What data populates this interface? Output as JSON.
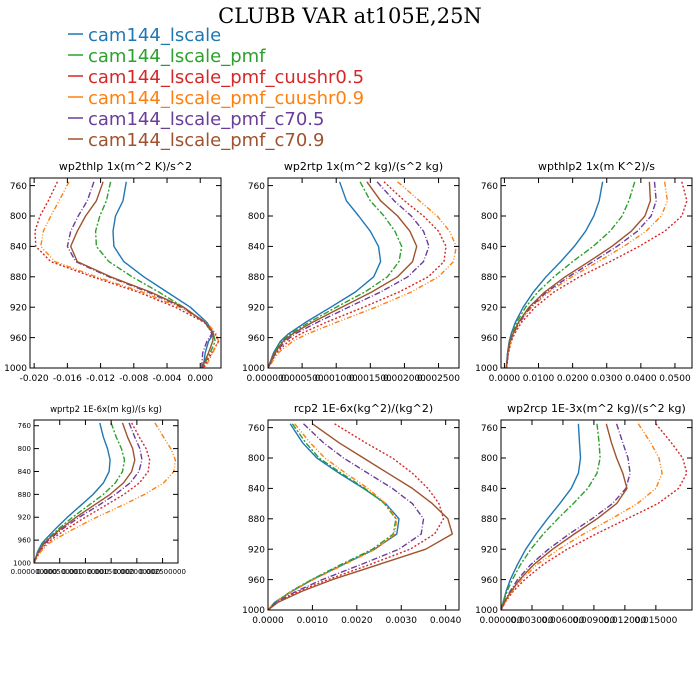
{
  "figure": {
    "title": "CLUBB VAR at105E,25N"
  },
  "legend": [
    {
      "label": "cam144_lscale",
      "color": "#1f77b4"
    },
    {
      "label": "cam144_lscale_pmf",
      "color": "#2ca02c"
    },
    {
      "label": "cam144_lscale_pmf_cuushr0.5",
      "color": "#d62728"
    },
    {
      "label": "cam144_lscale_pmf_cuushr0.9",
      "color": "#ff7f0e"
    },
    {
      "label": "cam144_lscale_pmf_c70.5",
      "color": "#6a3d9a"
    },
    {
      "label": "cam144_lscale_pmf_c70.9",
      "color": "#a0522d"
    }
  ],
  "series_styles": [
    {
      "color": "#1f77b4",
      "dash": ""
    },
    {
      "color": "#2ca02c",
      "dash": "6,2,2,2"
    },
    {
      "color": "#d62728",
      "dash": "2,2"
    },
    {
      "color": "#ff7f0e",
      "dash": "5,2,1,2,1,2"
    },
    {
      "color": "#6a3d9a",
      "dash": "6,2,1,2"
    },
    {
      "color": "#a0522d",
      "dash": ""
    }
  ],
  "chart_data": [
    {
      "type": "line",
      "title": "wp2thlp   1x(m^2 K)/s^2",
      "ylim": [
        1000,
        750
      ],
      "yticks": [
        760,
        800,
        840,
        880,
        920,
        960,
        1000
      ],
      "xlim": [
        -0.0205,
        0.0025
      ],
      "xticks": [
        -0.02,
        -0.016,
        -0.012,
        -0.008,
        -0.004,
        0.0
      ],
      "xtick_labels": [
        "-0.020",
        "-0.016",
        "-0.012",
        "-0.008",
        "-0.004",
        "0.000"
      ],
      "levels": [
        755,
        780,
        800,
        820,
        840,
        860,
        880,
        900,
        920,
        940,
        955,
        965,
        980,
        995,
        1000
      ],
      "series": [
        {
          "name": "cam144_lscale",
          "values": [
            -0.0089,
            -0.0093,
            -0.0102,
            -0.0105,
            -0.0104,
            -0.0092,
            -0.0068,
            -0.004,
            -0.0012,
            0.0008,
            0.0016,
            0.001,
            0.0006,
            0.0004,
            0.0003
          ]
        },
        {
          "name": "cam144_lscale_pmf",
          "values": [
            -0.0108,
            -0.0113,
            -0.0121,
            -0.0126,
            -0.0125,
            -0.011,
            -0.0082,
            -0.005,
            -0.002,
            0.0005,
            0.0016,
            0.0018,
            0.0012,
            0.0005,
            0.0003
          ]
        },
        {
          "name": "cam144_lscale_pmf_cuushr0.5",
          "values": [
            -0.0172,
            -0.0183,
            -0.0193,
            -0.0199,
            -0.0198,
            -0.018,
            -0.013,
            -0.0075,
            -0.003,
            0.0005,
            0.0018,
            0.0022,
            0.0014,
            0.0006,
            0.0004
          ]
        },
        {
          "name": "cam144_lscale_pmf_cuushr0.9",
          "values": [
            -0.0158,
            -0.017,
            -0.018,
            -0.0189,
            -0.0192,
            -0.0175,
            -0.0125,
            -0.007,
            -0.0025,
            0.0008,
            0.0019,
            0.0022,
            0.0015,
            0.0008,
            0.0005
          ]
        },
        {
          "name": "cam144_lscale_pmf_c70.5",
          "values": [
            -0.0128,
            -0.0136,
            -0.0147,
            -0.0156,
            -0.016,
            -0.015,
            -0.011,
            -0.0063,
            -0.0022,
            0.0006,
            0.0014,
            0.0008,
            0.0003,
            0.0002,
            0.0002
          ]
        },
        {
          "name": "cam144_lscale_pmf_c70.9",
          "values": [
            -0.0117,
            -0.0125,
            -0.0138,
            -0.0148,
            -0.0156,
            -0.0148,
            -0.0108,
            -0.006,
            -0.002,
            0.0006,
            0.0016,
            0.0015,
            0.001,
            0.0004,
            0.0003
          ]
        }
      ]
    },
    {
      "type": "line",
      "title": "wp2rtp   1x(m^2 kg)/(s^2 kg)",
      "ylim": [
        1000,
        750
      ],
      "yticks": [
        760,
        800,
        840,
        880,
        920,
        960,
        1000
      ],
      "xlim": [
        0,
        0.0028
      ],
      "xticks": [
        0,
        0.0005,
        0.001,
        0.0015,
        0.002,
        0.0025
      ],
      "xtick_labels": [
        "0.000000",
        "0.000500",
        "0.001000",
        "0.001500",
        "0.002000",
        "0.002500"
      ],
      "levels": [
        755,
        780,
        800,
        820,
        840,
        860,
        880,
        900,
        920,
        940,
        955,
        965,
        980,
        995,
        1000
      ],
      "series": [
        {
          "name": "cam144_lscale",
          "values": [
            0.00105,
            0.00115,
            0.00133,
            0.0015,
            0.00162,
            0.00165,
            0.00155,
            0.00128,
            0.00092,
            0.00055,
            0.0003,
            0.00018,
            8e-05,
            2e-05,
            0.0
          ]
        },
        {
          "name": "cam144_lscale_pmf",
          "values": [
            0.00135,
            0.0015,
            0.0017,
            0.00186,
            0.00196,
            0.00192,
            0.00175,
            0.00142,
            0.001,
            0.0006,
            0.00033,
            0.0002,
            9e-05,
            2e-05,
            0.0
          ]
        },
        {
          "name": "cam144_lscale_pmf_cuushr0.5",
          "values": [
            0.0017,
            0.002,
            0.00228,
            0.0025,
            0.00261,
            0.00258,
            0.00235,
            0.00192,
            0.0014,
            0.00085,
            0.00048,
            0.0003,
            0.00012,
            3e-05,
            0.0
          ]
        },
        {
          "name": "cam144_lscale_pmf_cuushr0.9",
          "values": [
            0.0019,
            0.00222,
            0.00248,
            0.00266,
            0.00276,
            0.00272,
            0.0025,
            0.0021,
            0.00158,
            0.001,
            0.00058,
            0.00036,
            0.00015,
            4e-05,
            0.0
          ]
        },
        {
          "name": "cam144_lscale_pmf_c70.5",
          "values": [
            0.0016,
            0.00185,
            0.0021,
            0.00228,
            0.00236,
            0.00228,
            0.00205,
            0.00165,
            0.00118,
            0.00072,
            0.0004,
            0.00025,
            0.00011,
            3e-05,
            0.0
          ]
        },
        {
          "name": "cam144_lscale_pmf_c70.9",
          "values": [
            0.00145,
            0.00165,
            0.0019,
            0.00208,
            0.00218,
            0.00212,
            0.0019,
            0.00152,
            0.00108,
            0.00065,
            0.00036,
            0.00022,
            0.0001,
            2e-05,
            0.0
          ]
        }
      ]
    },
    {
      "type": "line",
      "title": "wpthlp2   1x(m K^2)/s",
      "ylim": [
        1000,
        750
      ],
      "yticks": [
        760,
        800,
        840,
        880,
        920,
        960,
        1000
      ],
      "xlim": [
        -0.001,
        0.055
      ],
      "xticks": [
        0,
        0.01,
        0.02,
        0.03,
        0.04,
        0.05
      ],
      "xtick_labels": [
        "0.0000",
        "0.0100",
        "0.0200",
        "0.0300",
        "0.0400",
        "0.0500"
      ],
      "levels": [
        755,
        780,
        800,
        820,
        840,
        860,
        880,
        900,
        920,
        940,
        955,
        965,
        980,
        995,
        1000
      ],
      "series": [
        {
          "name": "cam144_lscale",
          "values": [
            0.0288,
            0.0278,
            0.0262,
            0.0238,
            0.0205,
            0.0165,
            0.0122,
            0.0085,
            0.0055,
            0.0032,
            0.002,
            0.0014,
            0.0009,
            0.0006,
            0.0005
          ]
        },
        {
          "name": "cam144_lscale_pmf",
          "values": [
            0.0382,
            0.0365,
            0.0345,
            0.031,
            0.026,
            0.02,
            0.0145,
            0.0098,
            0.0062,
            0.0036,
            0.0022,
            0.0015,
            0.001,
            0.0007,
            0.0005
          ]
        },
        {
          "name": "cam144_lscale_pmf_cuushr0.5",
          "values": [
            0.052,
            0.0535,
            0.052,
            0.047,
            0.0395,
            0.031,
            0.022,
            0.0145,
            0.009,
            0.005,
            0.003,
            0.002,
            0.0012,
            0.0008,
            0.0006
          ]
        },
        {
          "name": "cam144_lscale_pmf_cuushr0.9",
          "values": [
            0.047,
            0.0478,
            0.046,
            0.0415,
            0.035,
            0.0275,
            0.0198,
            0.013,
            0.008,
            0.0045,
            0.0027,
            0.0018,
            0.0011,
            0.0007,
            0.0006
          ]
        },
        {
          "name": "cam144_lscale_pmf_c70.5",
          "values": [
            0.044,
            0.0445,
            0.043,
            0.039,
            0.033,
            0.026,
            0.0188,
            0.0124,
            0.0076,
            0.0043,
            0.0026,
            0.0017,
            0.0011,
            0.0007,
            0.0005
          ]
        },
        {
          "name": "cam144_lscale_pmf_c70.9",
          "values": [
            0.0425,
            0.0428,
            0.0412,
            0.0372,
            0.0315,
            0.0248,
            0.0178,
            0.0118,
            0.0072,
            0.0041,
            0.0025,
            0.0016,
            0.001,
            0.0007,
            0.0005
          ]
        }
      ]
    },
    {
      "type": "line",
      "title": "wprtp2   1E-6x(m kg)/(s kg)",
      "ylim": [
        1000,
        750
      ],
      "yticks": [
        760,
        800,
        840,
        880,
        920,
        960,
        1000
      ],
      "xlim": [
        0,
        0.0028
      ],
      "xticks": [
        0,
        0.0005,
        0.001,
        0.0015,
        0.002,
        0.0025
      ],
      "xtick_labels": [
        "0.000000000",
        "0.000500000",
        "0.001000000",
        "0.001500000",
        "0.002000000",
        "0.002500000"
      ],
      "levels": [
        755,
        780,
        800,
        820,
        840,
        860,
        880,
        900,
        920,
        940,
        955,
        965,
        980,
        995,
        1000
      ],
      "series": [
        {
          "name": "cam144_lscale",
          "values": [
            0.00128,
            0.00135,
            0.00143,
            0.00148,
            0.00146,
            0.00135,
            0.00115,
            0.0009,
            0.00065,
            0.00042,
            0.00026,
            0.00016,
            7e-05,
            2e-05,
            0.0
          ]
        },
        {
          "name": "cam144_lscale_pmf",
          "values": [
            0.0015,
            0.0016,
            0.0017,
            0.00176,
            0.00172,
            0.00158,
            0.00135,
            0.00105,
            0.00075,
            0.00048,
            0.0003,
            0.00018,
            8e-05,
            2e-05,
            0.0
          ]
        },
        {
          "name": "cam144_lscale_pmf_cuushr0.5",
          "values": [
            0.0019,
            0.00205,
            0.00218,
            0.00225,
            0.00222,
            0.00205,
            0.00175,
            0.00138,
            0.001,
            0.00064,
            0.0004,
            0.00025,
            0.00011,
            3e-05,
            0.0
          ]
        },
        {
          "name": "cam144_lscale_pmf_cuushr0.9",
          "values": [
            0.00235,
            0.00252,
            0.00266,
            0.00275,
            0.00272,
            0.00252,
            0.00215,
            0.0017,
            0.00122,
            0.00078,
            0.00048,
            0.0003,
            0.00013,
            3e-05,
            0.0
          ]
        },
        {
          "name": "cam144_lscale_pmf_c70.5",
          "values": [
            0.00185,
            0.00196,
            0.00206,
            0.0021,
            0.00204,
            0.00187,
            0.00158,
            0.00124,
            0.00088,
            0.00056,
            0.00035,
            0.00022,
            0.0001,
            2e-05,
            0.0
          ]
        },
        {
          "name": "cam144_lscale_pmf_c70.9",
          "values": [
            0.00172,
            0.00182,
            0.00192,
            0.00196,
            0.0019,
            0.00174,
            0.00148,
            0.00115,
            0.00082,
            0.00052,
            0.00032,
            0.0002,
            9e-05,
            2e-05,
            0.0
          ]
        }
      ]
    },
    {
      "type": "line",
      "title": "rcp2   1E-6x(kg^2)/(kg^2)",
      "ylim": [
        1000,
        750
      ],
      "yticks": [
        760,
        800,
        840,
        880,
        920,
        960,
        1000
      ],
      "xlim": [
        0,
        0.0043
      ],
      "xticks": [
        0,
        0.001,
        0.002,
        0.003,
        0.004
      ],
      "xtick_labels": [
        "0.0000",
        "0.0010",
        "0.0020",
        "0.0030",
        "0.0040"
      ],
      "levels": [
        755,
        780,
        800,
        820,
        840,
        860,
        880,
        900,
        920,
        940,
        960,
        975,
        990,
        1000
      ],
      "series": [
        {
          "name": "cam144_lscale",
          "values": [
            0.0005,
            0.00078,
            0.0011,
            0.0016,
            0.00215,
            0.00265,
            0.00295,
            0.0029,
            0.0024,
            0.0017,
            0.001,
            0.00055,
            0.00015,
            0.0
          ]
        },
        {
          "name": "cam144_lscale_pmf",
          "values": [
            0.00055,
            0.00085,
            0.00115,
            0.00165,
            0.00218,
            0.00262,
            0.00288,
            0.00282,
            0.00235,
            0.00165,
            0.00098,
            0.00053,
            0.00015,
            0.0
          ]
        },
        {
          "name": "cam144_lscale_pmf_cuushr0.5",
          "values": [
            0.0015,
            0.0022,
            0.0028,
            0.00325,
            0.0036,
            0.00385,
            0.00395,
            0.00375,
            0.0032,
            0.0023,
            0.00135,
            0.0007,
            0.0002,
            0.0
          ]
        },
        {
          "name": "cam144_lscale_pmf_cuushr0.9",
          "values": [
            0.0006,
            0.00095,
            0.00128,
            0.00175,
            0.00225,
            0.00265,
            0.0029,
            0.00285,
            0.00242,
            0.00172,
            0.00102,
            0.00055,
            0.00016,
            0.0
          ]
        },
        {
          "name": "cam144_lscale_pmf_c70.5",
          "values": [
            0.0008,
            0.00125,
            0.0017,
            0.00225,
            0.0028,
            0.00325,
            0.0035,
            0.00345,
            0.00295,
            0.0021,
            0.00122,
            0.00065,
            0.00018,
            0.0
          ]
        },
        {
          "name": "cam144_lscale_pmf_c70.9",
          "values": [
            0.001,
            0.0016,
            0.00215,
            0.0027,
            0.00325,
            0.0037,
            0.00405,
            0.00415,
            0.00355,
            0.0025,
            0.00145,
            0.00078,
            0.00022,
            0.0
          ]
        }
      ]
    },
    {
      "type": "line",
      "title": "wp2rcp   1E-3x(m^2 kg)/(s^2 kg)",
      "ylim": [
        1000,
        750
      ],
      "yticks": [
        760,
        800,
        840,
        880,
        920,
        960,
        1000
      ],
      "xlim": [
        0,
        0.0185
      ],
      "xticks": [
        0,
        0.003,
        0.006,
        0.009,
        0.012,
        0.015
      ],
      "xtick_labels": [
        "0.000000",
        "0.003000",
        "0.006000",
        "0.009000",
        "0.012000",
        "0.015000"
      ],
      "levels": [
        755,
        780,
        800,
        820,
        840,
        860,
        880,
        900,
        920,
        940,
        960,
        975,
        990,
        1000
      ],
      "series": [
        {
          "name": "cam144_lscale",
          "values": [
            0.0075,
            0.0076,
            0.0077,
            0.0075,
            0.0068,
            0.0057,
            0.0045,
            0.0034,
            0.0024,
            0.0016,
            0.0009,
            0.0005,
            0.0002,
            0.0
          ]
        },
        {
          "name": "cam144_lscale_pmf",
          "values": [
            0.0093,
            0.0095,
            0.0096,
            0.0093,
            0.0084,
            0.007,
            0.0055,
            0.0041,
            0.0029,
            0.0019,
            0.0011,
            0.0006,
            0.0002,
            0.0
          ]
        },
        {
          "name": "cam144_lscale_pmf_cuushr0.5",
          "values": [
            0.015,
            0.0165,
            0.0176,
            0.018,
            0.0172,
            0.0152,
            0.0122,
            0.0092,
            0.0064,
            0.0041,
            0.0023,
            0.0012,
            0.0004,
            0.0
          ]
        },
        {
          "name": "cam144_lscale_pmf_cuushr0.9",
          "values": [
            0.0133,
            0.0145,
            0.0153,
            0.0156,
            0.015,
            0.0132,
            0.0107,
            0.008,
            0.0056,
            0.0035,
            0.002,
            0.0011,
            0.0004,
            0.0
          ]
        },
        {
          "name": "cam144_lscale_pmf_c70.5",
          "values": [
            0.0112,
            0.0118,
            0.0123,
            0.0125,
            0.0121,
            0.0108,
            0.0088,
            0.0066,
            0.0046,
            0.0029,
            0.0016,
            0.0009,
            0.0003,
            0.0
          ]
        },
        {
          "name": "cam144_lscale_pmf_c70.9",
          "values": [
            0.0102,
            0.0107,
            0.0112,
            0.0118,
            0.0122,
            0.0112,
            0.0093,
            0.0071,
            0.005,
            0.0032,
            0.0018,
            0.001,
            0.0003,
            0.0
          ]
        }
      ]
    }
  ]
}
